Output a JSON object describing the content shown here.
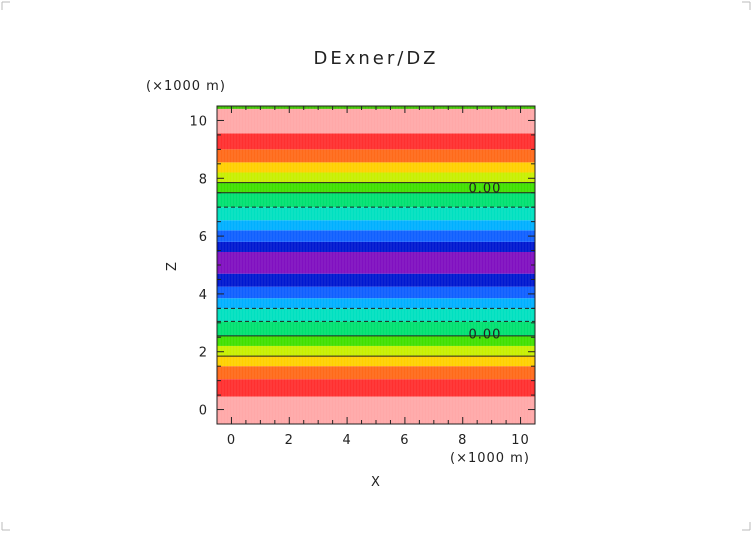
{
  "chart_data": {
    "type": "heatmap",
    "title": "DExner/DZ",
    "xlabel": "X",
    "ylabel": "Z",
    "x_unit": "(×1000 m)",
    "y_unit": "(×1000 m)",
    "xlim": [
      -0.5,
      10.5
    ],
    "ylim": [
      -0.5,
      10.5
    ],
    "x_ticks": [
      "0",
      "2",
      "4",
      "6",
      "8",
      "10"
    ],
    "y_ticks": [
      "0",
      "2",
      "4",
      "6",
      "8",
      "10"
    ],
    "description_of_field": "horizontally uniform; varies only with Z",
    "bands": [
      {
        "z0": -0.5,
        "z1": 0.45,
        "color": "#ffa8a8"
      },
      {
        "z0": 0.45,
        "z1": 1.05,
        "color": "#ff3030"
      },
      {
        "z0": 1.05,
        "z1": 1.5,
        "color": "#ff6a1a"
      },
      {
        "z0": 1.5,
        "z1": 1.85,
        "color": "#ffd000"
      },
      {
        "z0": 1.85,
        "z1": 2.2,
        "color": "#c8f000"
      },
      {
        "z0": 2.2,
        "z1": 2.55,
        "color": "#40e000"
      },
      {
        "z0": 2.55,
        "z1": 3.05,
        "color": "#00e070"
      },
      {
        "z0": 3.05,
        "z1": 3.5,
        "color": "#00e0c0"
      },
      {
        "z0": 3.5,
        "z1": 3.85,
        "color": "#00b0ff"
      },
      {
        "z0": 3.85,
        "z1": 4.25,
        "color": "#1060ff"
      },
      {
        "z0": 4.25,
        "z1": 4.7,
        "color": "#0018d0"
      },
      {
        "z0": 4.7,
        "z1": 5.45,
        "color": "#8010c0"
      },
      {
        "z0": 5.45,
        "z1": 5.8,
        "color": "#0018d0"
      },
      {
        "z0": 5.8,
        "z1": 6.2,
        "color": "#1060ff"
      },
      {
        "z0": 6.2,
        "z1": 6.55,
        "color": "#00b0ff"
      },
      {
        "z0": 6.55,
        "z1": 7.0,
        "color": "#00e0c0"
      },
      {
        "z0": 7.0,
        "z1": 7.5,
        "color": "#00e070"
      },
      {
        "z0": 7.5,
        "z1": 7.85,
        "color": "#40e000"
      },
      {
        "z0": 7.85,
        "z1": 8.2,
        "color": "#c8f000"
      },
      {
        "z0": 8.2,
        "z1": 8.55,
        "color": "#ffd000"
      },
      {
        "z0": 8.55,
        "z1": 9.0,
        "color": "#ff6a1a"
      },
      {
        "z0": 9.0,
        "z1": 9.55,
        "color": "#ff3030"
      },
      {
        "z0": 9.55,
        "z1": 10.4,
        "color": "#ffa8a8"
      },
      {
        "z0": 10.4,
        "z1": 10.5,
        "color": "#40c000"
      }
    ],
    "contours": [
      {
        "z": 1.85,
        "style": "solid"
      },
      {
        "z": 2.55,
        "style": "solid"
      },
      {
        "z": 3.05,
        "style": "dashed"
      },
      {
        "z": 3.5,
        "style": "dashed"
      },
      {
        "z": 7.0,
        "style": "dashed"
      },
      {
        "z": 7.5,
        "style": "solid"
      },
      {
        "z": 7.85,
        "style": "solid"
      }
    ],
    "contour_labels": [
      {
        "text": "0.00",
        "x": 8.2,
        "z": 2.5
      },
      {
        "text": "0.00",
        "x": 8.2,
        "z": 7.55
      }
    ]
  }
}
